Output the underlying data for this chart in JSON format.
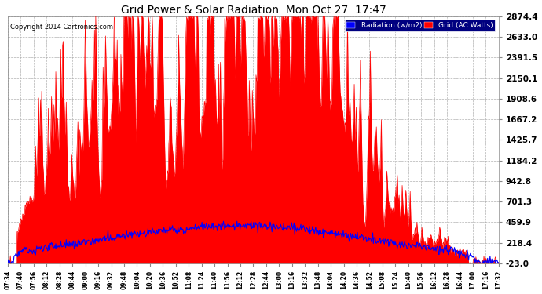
{
  "title": "Grid Power & Solar Radiation  Mon Oct 27  17:47",
  "copyright": "Copyright 2014 Cartronics.com",
  "legend_radiation": "Radiation (w/m2)",
  "legend_grid": "Grid (AC Watts)",
  "ymin": -23.0,
  "ymax": 2874.4,
  "yticks": [
    2874.4,
    2633.0,
    2391.5,
    2150.1,
    1908.6,
    1667.2,
    1425.7,
    1184.2,
    942.8,
    701.3,
    459.9,
    218.4,
    -23.0
  ],
  "background_color": "#ffffff",
  "plot_bg_color": "#ffffff",
  "grid_color": "#aaaaaa",
  "red_color": "#ff0000",
  "blue_color": "#0000ff",
  "title_color": "#000000",
  "tick_color": "#000000",
  "xtick_labels": [
    "07:34",
    "07:40",
    "07:56",
    "08:12",
    "08:28",
    "08:44",
    "09:00",
    "09:16",
    "09:32",
    "09:48",
    "10:04",
    "10:20",
    "10:36",
    "10:52",
    "11:08",
    "11:24",
    "11:40",
    "11:56",
    "12:12",
    "12:28",
    "12:44",
    "13:00",
    "13:16",
    "13:32",
    "13:48",
    "14:04",
    "14:20",
    "14:36",
    "14:52",
    "15:08",
    "15:24",
    "15:40",
    "15:56",
    "16:12",
    "16:28",
    "16:44",
    "17:00",
    "17:16",
    "17:32"
  ]
}
